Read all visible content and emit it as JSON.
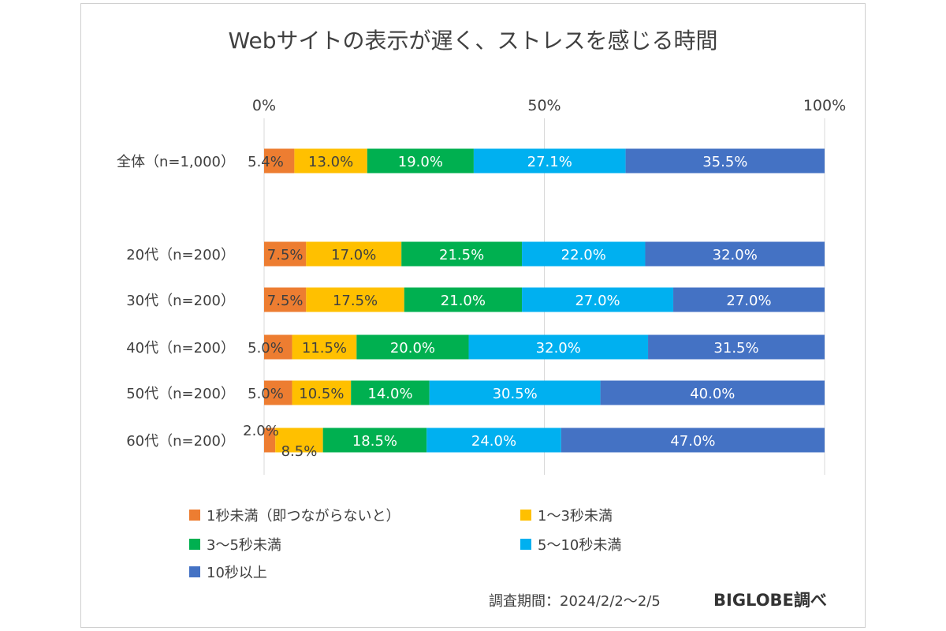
{
  "chart_data": {
    "type": "bar",
    "orientation": "horizontal-stacked-100",
    "title": "Webサイトの表示が遅く、ストレスを感じる時間",
    "xlim": [
      0,
      100
    ],
    "x_ticks": [
      "0%",
      "50%",
      "100%"
    ],
    "grid": true,
    "legend_position": "bottom",
    "categories": [
      "全体（n=1,000）",
      "20代（n=200）",
      "30代（n=200）",
      "40代（n=200）",
      "50代（n=200）",
      "60代（n=200）"
    ],
    "series": [
      {
        "name": "1秒未満（即つながらないと）",
        "color": "#ED7D31",
        "values": [
          5.4,
          7.5,
          7.5,
          5.0,
          5.0,
          2.0
        ],
        "labels": [
          "5.4%",
          "7.5%",
          "7.5%",
          "5.0%",
          "5.0%",
          "2.0%"
        ]
      },
      {
        "name": "1～3秒未満",
        "color": "#FFC000",
        "values": [
          13.0,
          17.0,
          17.5,
          11.5,
          10.5,
          8.5
        ],
        "labels": [
          "13.0%",
          "17.0%",
          "17.5%",
          "11.5%",
          "10.5%",
          "8.5%"
        ]
      },
      {
        "name": "3～5秒未満",
        "color": "#00B050",
        "values": [
          19.0,
          21.5,
          21.0,
          20.0,
          14.0,
          18.5
        ],
        "labels": [
          "19.0%",
          "21.5%",
          "21.0%",
          "20.0%",
          "14.0%",
          "18.5%"
        ]
      },
      {
        "name": "5～10秒未満",
        "color": "#00B0F0",
        "values": [
          27.1,
          22.0,
          27.0,
          32.0,
          30.5,
          24.0
        ],
        "labels": [
          "27.1%",
          "22.0%",
          "27.0%",
          "32.0%",
          "30.5%",
          "24.0%"
        ]
      },
      {
        "name": "10秒以上",
        "color": "#4472C4",
        "values": [
          35.5,
          32.0,
          27.0,
          31.5,
          40.0,
          47.0
        ],
        "labels": [
          "35.5%",
          "32.0%",
          "27.0%",
          "31.5%",
          "40.0%",
          "47.0%"
        ]
      }
    ]
  },
  "footer": {
    "period": "調査期間：2024/2/2～2/5",
    "brand": "BIGLOBE調べ"
  }
}
